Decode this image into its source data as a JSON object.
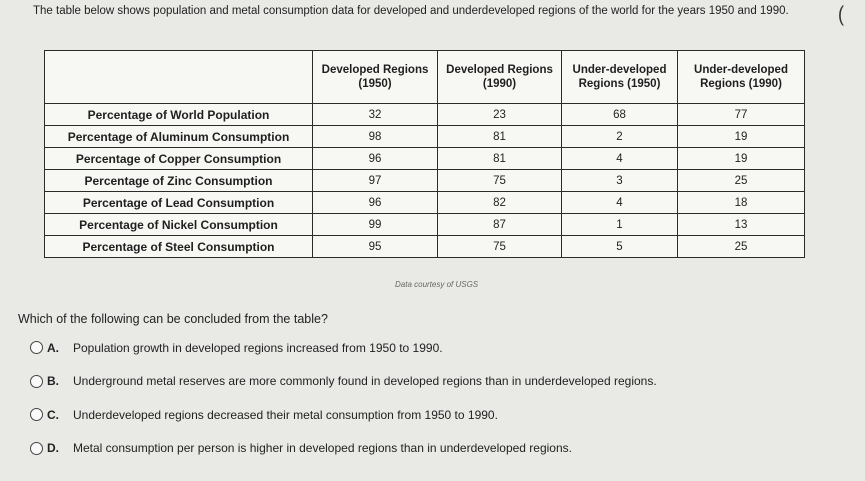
{
  "intro": {
    "text": "The table below shows population and metal consumption data for developed and underdeveloped regions of the world for the years 1950 and 1990."
  },
  "table": {
    "headers": [
      "",
      "Developed Regions (1950)",
      "Developed Regions (1990)",
      "Under-developed Regions (1950)",
      "Under-developed Regions (1990)"
    ],
    "rows": [
      {
        "label": "Percentage of World Population",
        "values": [
          "32",
          "23",
          "68",
          "77"
        ]
      },
      {
        "label": "Percentage of Aluminum Consumption",
        "values": [
          "98",
          "81",
          "2",
          "19"
        ]
      },
      {
        "label": "Percentage of Copper Consumption",
        "values": [
          "96",
          "81",
          "4",
          "19"
        ]
      },
      {
        "label": "Percentage of Zinc Consumption",
        "values": [
          "97",
          "75",
          "3",
          "25"
        ]
      },
      {
        "label": "Percentage of Lead Consumption",
        "values": [
          "96",
          "82",
          "4",
          "18"
        ]
      },
      {
        "label": "Percentage of Nickel Consumption",
        "values": [
          "99",
          "87",
          "1",
          "13"
        ]
      },
      {
        "label": "Percentage of Steel Consumption",
        "values": [
          "95",
          "75",
          "5",
          "25"
        ]
      }
    ],
    "source": "Data courtesy of USGS"
  },
  "question": {
    "text": "Which of the following can be concluded from the table?",
    "options": [
      {
        "letter": "A.",
        "text": "Population growth in developed regions increased from 1950 to 1990."
      },
      {
        "letter": "B.",
        "text": "Underground metal reserves are more commonly found in developed regions than in underdeveloped regions."
      },
      {
        "letter": "C.",
        "text": "Underdeveloped regions decreased their metal consumption from 1950 to 1990."
      },
      {
        "letter": "D.",
        "text": "Metal consumption per person is higher in developed regions than in underdeveloped regions."
      }
    ]
  }
}
